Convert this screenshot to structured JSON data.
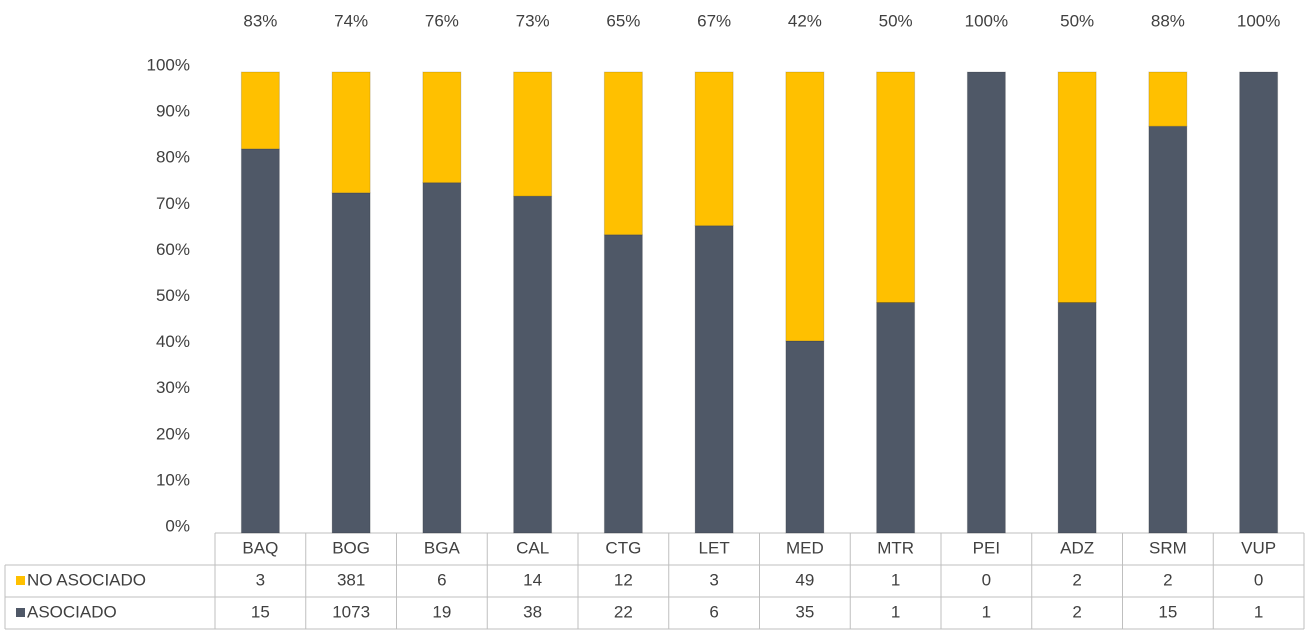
{
  "chart_data": {
    "type": "stacked_bar_100",
    "categories": [
      "BAQ",
      "BOG",
      "BGA",
      "CAL",
      "CTG",
      "LET",
      "MED",
      "MTR",
      "PEI",
      "ADZ",
      "SRM",
      "VUP"
    ],
    "series": [
      {
        "name": "NO ASOCIADO",
        "color": "#ffc000",
        "values": [
          3,
          381,
          6,
          14,
          12,
          3,
          49,
          1,
          0,
          2,
          2,
          0
        ]
      },
      {
        "name": "ASOCIADO",
        "color": "#4f5867",
        "values": [
          15,
          1073,
          19,
          38,
          22,
          6,
          35,
          1,
          1,
          2,
          15,
          1
        ]
      }
    ],
    "top_labels": [
      "83%",
      "74%",
      "76%",
      "73%",
      "65%",
      "67%",
      "42%",
      "50%",
      "100%",
      "50%",
      "88%",
      "100%"
    ],
    "ylim": [
      0,
      100
    ],
    "yticks": [
      {
        "value": 0,
        "label": "0%"
      },
      {
        "value": 10,
        "label": "10%"
      },
      {
        "value": 20,
        "label": "20%"
      },
      {
        "value": 30,
        "label": "30%"
      },
      {
        "value": 40,
        "label": "40%"
      },
      {
        "value": 50,
        "label": "50%"
      },
      {
        "value": 60,
        "label": "60%"
      },
      {
        "value": 70,
        "label": "70%"
      },
      {
        "value": 80,
        "label": "80%"
      },
      {
        "value": 90,
        "label": "90%"
      },
      {
        "value": 100,
        "label": "100%"
      }
    ]
  }
}
